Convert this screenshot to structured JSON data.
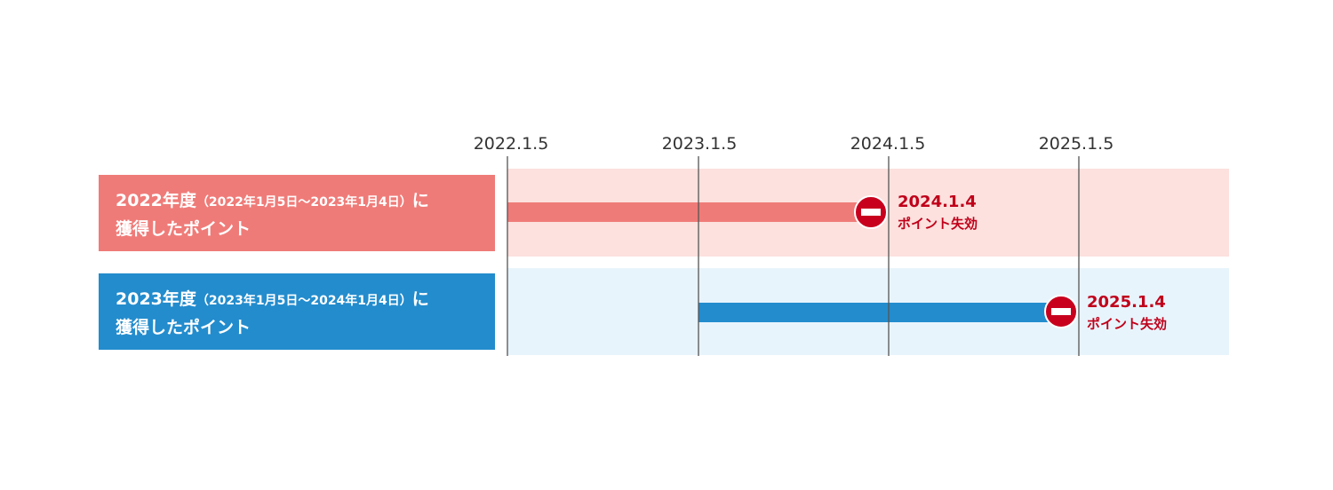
{
  "timeline": {
    "ticks": [
      "2022.1.5",
      "2023.1.5",
      "2024.1.5",
      "2025.1.5"
    ]
  },
  "rows": [
    {
      "year": "2022年度",
      "period": "（2022年1月5日〜2023年1月4日）",
      "suffix": "に",
      "line2": "獲得したポイント",
      "expiry_date": "2024.1.4",
      "expiry_text": "ポイント失効"
    },
    {
      "year": "2023年度",
      "period": "（2023年1月5日〜2024年1月4日）",
      "suffix": "に",
      "line2": "獲得したポイント",
      "expiry_date": "2025.1.4",
      "expiry_text": "ポイント失効"
    }
  ]
}
